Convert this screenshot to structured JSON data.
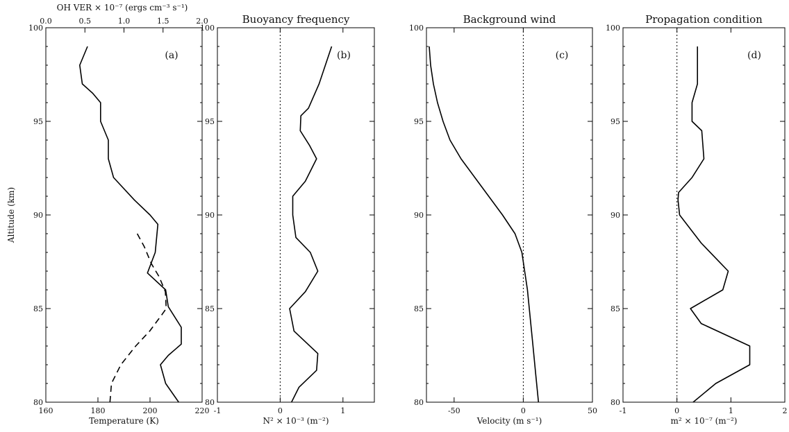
{
  "chart_data": [
    {
      "panel": "a",
      "type": "line",
      "title": "",
      "letter": "(a)",
      "xlabel": "Temperature (K)",
      "ylabel": "Altitude (km)",
      "xlim": [
        160,
        220
      ],
      "ylim": [
        80,
        100
      ],
      "xticks": [
        "160",
        "180",
        "200",
        "220"
      ],
      "yticks": [
        "80",
        "85",
        "90",
        "95",
        "100"
      ],
      "top_axis": {
        "label": "OH VER × 10⁻⁷ (ergs cm⁻³ s⁻¹)",
        "lim": [
          0.0,
          2.0
        ],
        "ticks": [
          "0.0",
          "0.5",
          "1.0",
          "1.5",
          "2.0"
        ]
      },
      "series": [
        {
          "style": "solid",
          "axis": "bottom",
          "x": [
            211,
            206,
            204,
            207,
            212,
            212,
            207,
            206,
            199,
            202,
            203,
            200,
            194,
            186,
            184,
            184,
            181,
            181,
            178,
            174,
            173,
            176
          ],
          "y": [
            80,
            81,
            82,
            82.5,
            83.1,
            84,
            85.1,
            86,
            86.9,
            88,
            89.5,
            90,
            90.8,
            92,
            93,
            94,
            95,
            96,
            96.5,
            97,
            98,
            99
          ]
        },
        {
          "style": "dashed",
          "axis": "top",
          "x": [
            0.82,
            0.84,
            0.96,
            1.15,
            1.33,
            1.49,
            1.54,
            1.53,
            1.45,
            1.35,
            1.26,
            1.17
          ],
          "y": [
            80,
            81,
            82,
            83,
            83.8,
            84.7,
            85,
            85.9,
            86.7,
            87.4,
            88.3,
            89
          ]
        }
      ]
    },
    {
      "panel": "b",
      "type": "line",
      "title": "Buoyancy frequency",
      "letter": "(b)",
      "xlabel": "N² × 10⁻³ (m⁻²)",
      "ylabel": "",
      "xlim": [
        -1,
        1.5
      ],
      "ylim": [
        80,
        100
      ],
      "xticks": [
        "-1",
        "0",
        "1"
      ],
      "xtick_values": [
        -1,
        0,
        1
      ],
      "yticks": [
        "80",
        "85",
        "90",
        "95",
        "100"
      ],
      "zero_line": 0,
      "series": [
        {
          "style": "solid",
          "x": [
            0.18,
            0.3,
            0.58,
            0.6,
            0.22,
            0.15,
            0.4,
            0.6,
            0.48,
            0.25,
            0.2,
            0.2,
            0.4,
            0.58,
            0.47,
            0.32,
            0.33,
            0.45,
            0.62,
            0.82
          ],
          "y": [
            80,
            80.8,
            81.7,
            82.6,
            83.8,
            85,
            85.9,
            87,
            88,
            88.8,
            90,
            91,
            91.8,
            93,
            93.7,
            94.5,
            95.3,
            95.7,
            97,
            99
          ]
        }
      ]
    },
    {
      "panel": "c",
      "type": "line",
      "title": "Background wind",
      "letter": "(c)",
      "xlabel": "Velocity (m s⁻¹)",
      "ylabel": "",
      "xlim": [
        -70,
        50
      ],
      "ylim": [
        80,
        100
      ],
      "xticks": [
        "-50",
        "0",
        "50"
      ],
      "xtick_values": [
        -50,
        0,
        50
      ],
      "yticks": [
        "80",
        "85",
        "90",
        "95",
        "100"
      ],
      "zero_line": 0,
      "series": [
        {
          "style": "solid",
          "x": [
            11,
            9,
            7,
            5,
            3,
            1,
            -1,
            -6,
            -15,
            -25,
            -35,
            -45,
            -53,
            -58,
            -62,
            -65,
            -67,
            -68
          ],
          "y": [
            80,
            81.5,
            83,
            84.5,
            86,
            87,
            88,
            89,
            90,
            91,
            92,
            93,
            94,
            95,
            96,
            97,
            98,
            99
          ]
        }
      ]
    },
    {
      "panel": "d",
      "type": "line",
      "title": "Propagation condition",
      "letter": "(d)",
      "xlabel": "m² × 10⁻⁷ (m⁻²)",
      "ylabel": "",
      "xlim": [
        -1,
        2
      ],
      "ylim": [
        80,
        100
      ],
      "xticks": [
        "-1",
        "0",
        "1",
        "2"
      ],
      "xtick_values": [
        -1,
        0,
        1,
        2
      ],
      "yticks": [
        "80",
        "85",
        "90",
        "95",
        "100"
      ],
      "zero_line": 0,
      "series": [
        {
          "style": "solid",
          "x": [
            0.3,
            0.72,
            1.35,
            1.35,
            0.45,
            0.25,
            0.85,
            0.95,
            0.45,
            0.05,
            0.02,
            0.03,
            0.28,
            0.5,
            0.46,
            0.28,
            0.28,
            0.38,
            0.38
          ],
          "y": [
            80,
            81,
            82,
            83,
            84.2,
            85,
            86,
            87,
            88.5,
            90,
            90.8,
            91.2,
            92,
            93,
            94.5,
            95,
            96,
            97,
            99
          ]
        }
      ]
    }
  ]
}
